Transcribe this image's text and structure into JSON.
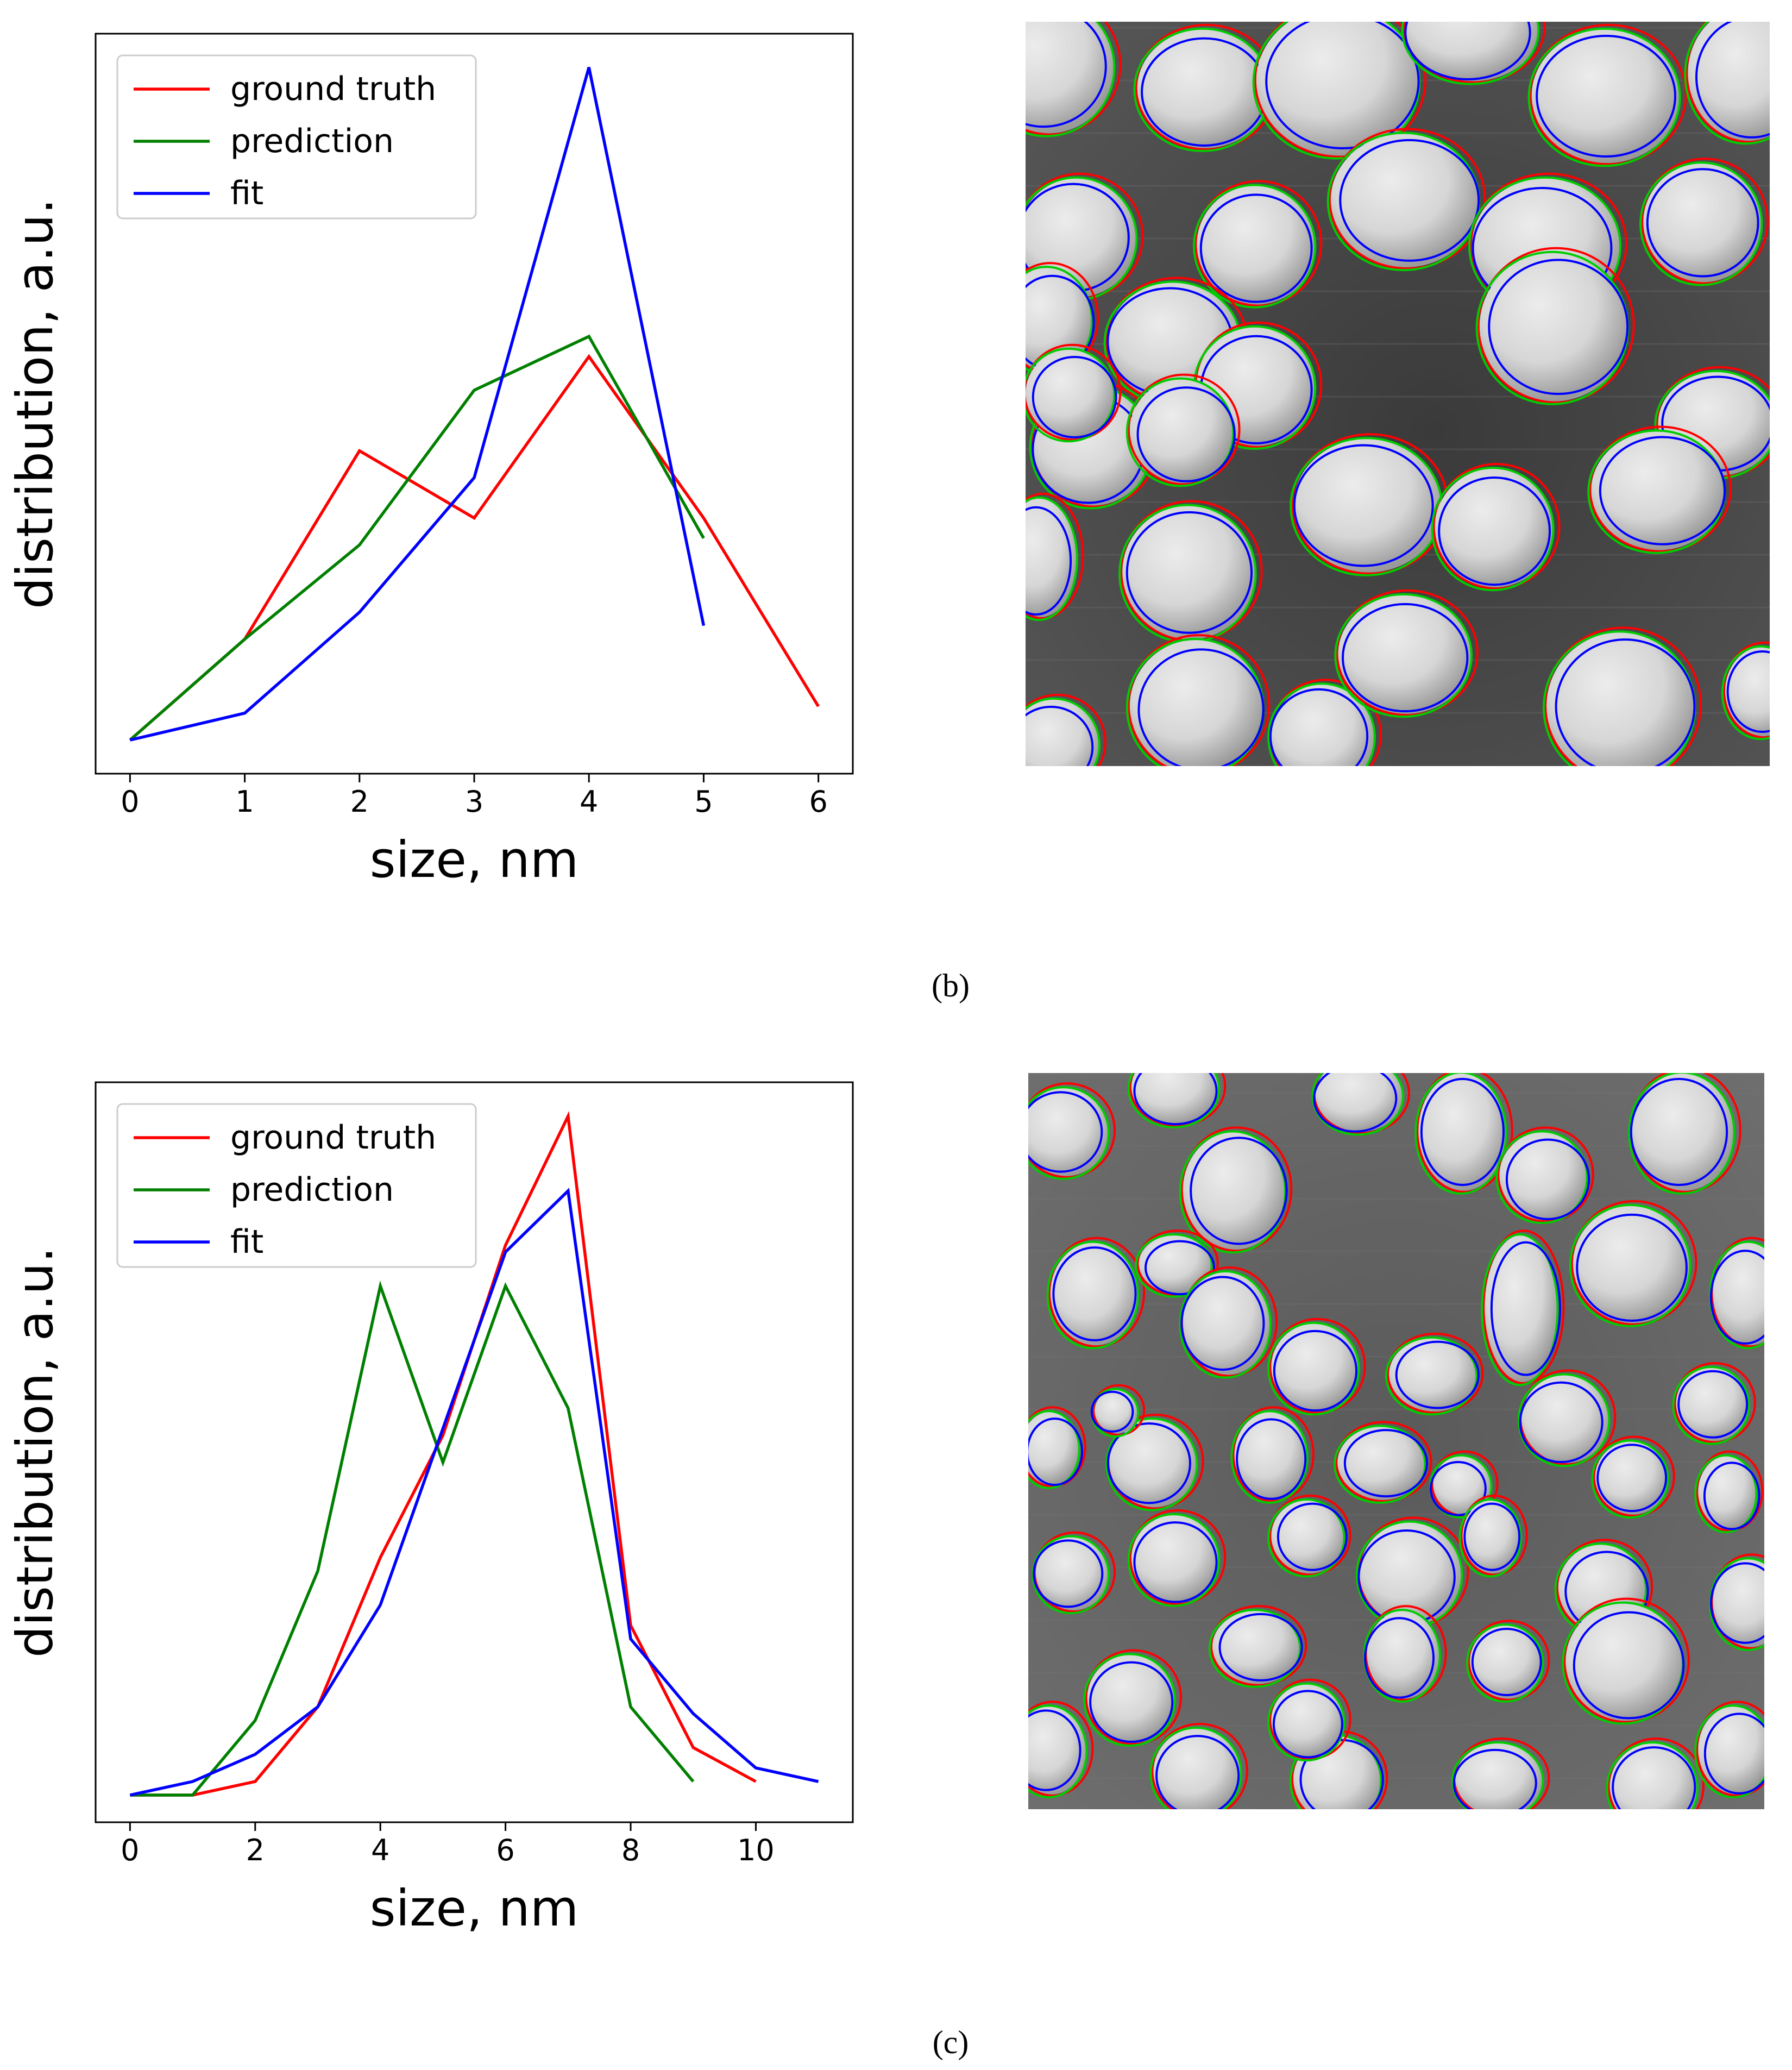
{
  "figure": {
    "captions": {
      "b": "(b)",
      "c": "(c)"
    }
  },
  "chart_data": [
    {
      "panel": "(b)",
      "type": "line",
      "title": "",
      "xlabel": "size, nm",
      "ylabel": "distribution, a.u.",
      "xlim": [
        -0.3,
        6.3
      ],
      "ylim": [
        -0.05,
        1.05
      ],
      "xticks": [
        0,
        1,
        2,
        3,
        4,
        5,
        6
      ],
      "yticks": [],
      "legend_position": "top-left",
      "series": [
        {
          "name": "ground truth",
          "color": "#ff0000",
          "x": [
            0,
            1,
            2,
            3,
            4,
            5,
            6
          ],
          "y": [
            0.0,
            0.15,
            0.43,
            0.33,
            0.57,
            0.33,
            0.05
          ]
        },
        {
          "name": "prediction",
          "color": "#008000",
          "x": [
            0,
            1,
            2,
            3,
            4,
            5
          ],
          "y": [
            0.0,
            0.15,
            0.29,
            0.52,
            0.6,
            0.3
          ]
        },
        {
          "name": "fit",
          "color": "#0000ff",
          "x": [
            0,
            1,
            2,
            3,
            4,
            5
          ],
          "y": [
            0.0,
            0.04,
            0.19,
            0.39,
            1.0,
            0.17
          ]
        }
      ]
    },
    {
      "panel": "(c)",
      "type": "line",
      "title": "",
      "xlabel": "size, nm",
      "ylabel": "distribution, a.u.",
      "xlim": [
        -0.55,
        11.55
      ],
      "ylim": [
        -0.04,
        1.05
      ],
      "xticks": [
        0,
        2,
        4,
        6,
        8,
        10
      ],
      "yticks": [],
      "legend_position": "top-left",
      "series": [
        {
          "name": "ground truth",
          "color": "#ff0000",
          "x": [
            0,
            1,
            2,
            3,
            4,
            5,
            6,
            7,
            8,
            9,
            10
          ],
          "y": [
            0.0,
            0.0,
            0.02,
            0.13,
            0.35,
            0.53,
            0.81,
            1.0,
            0.25,
            0.07,
            0.02
          ]
        },
        {
          "name": "prediction",
          "color": "#008000",
          "x": [
            0,
            1,
            2,
            3,
            4,
            5,
            6,
            7,
            8,
            9
          ],
          "y": [
            0.0,
            0.0,
            0.11,
            0.33,
            0.75,
            0.49,
            0.75,
            0.57,
            0.13,
            0.02
          ]
        },
        {
          "name": "fit",
          "color": "#0000ff",
          "x": [
            0,
            1,
            2,
            3,
            4,
            5,
            6,
            7,
            8,
            9,
            10,
            11
          ],
          "y": [
            0.0,
            0.02,
            0.06,
            0.13,
            0.28,
            0.54,
            0.8,
            0.89,
            0.23,
            0.12,
            0.04,
            0.02
          ]
        }
      ]
    }
  ],
  "micrographs": [
    {
      "panel": "(b)",
      "outline_colors": [
        "#ff0000",
        "#00cc00",
        "#0000ff"
      ]
    },
    {
      "panel": "(c)",
      "outline_colors": [
        "#ff0000",
        "#00cc00",
        "#0000ff"
      ]
    }
  ]
}
